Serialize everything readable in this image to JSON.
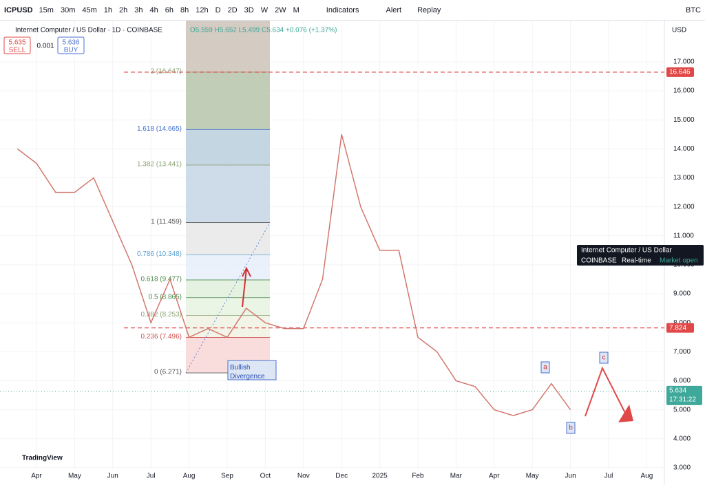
{
  "toolbar": {
    "symbol": "ICPUSD",
    "intervals": [
      "15m",
      "30m",
      "45m",
      "1h",
      "2h",
      "3h",
      "4h",
      "6h",
      "8h",
      "12h",
      "D",
      "2D",
      "3D",
      "W",
      "2W",
      "M"
    ],
    "indicators": "Indicators",
    "alert": "Alert",
    "replay": "Replay",
    "compare": "BTC"
  },
  "legend": {
    "title": "Internet Computer / US Dollar · 1D · COINBASE",
    "ohlc": "O5.559 H5.652 L5.499 C5.634 +0.076 (+1.37%)",
    "sell_price": "5.635",
    "sell": "SELL",
    "spread": "0.001",
    "buy_price": "5.636",
    "buy": "BUY"
  },
  "chart_data": {
    "type": "line",
    "currency": "USD",
    "color": "#d2776d",
    "categories": [
      null,
      "Apr",
      null,
      "May",
      null,
      "Jun",
      null,
      "Jul",
      null,
      "Aug",
      null,
      "Sep",
      null,
      "Oct",
      null,
      "Nov",
      null,
      "Dec",
      null,
      "2025",
      null,
      "Feb",
      null,
      "Mar",
      null,
      "Apr",
      null,
      "May",
      null,
      "Jun",
      null,
      "Jul",
      null,
      "Aug"
    ],
    "values": [
      14.0,
      13.5,
      12.5,
      12.5,
      13.0,
      11.5,
      10.0,
      8.0,
      9.5,
      7.5,
      7.8,
      7.5,
      8.5,
      8.0,
      7.8,
      7.8,
      9.5,
      14.5,
      12.0,
      10.5,
      10.5,
      7.5,
      7.0,
      6.0,
      5.8,
      5.0,
      4.8,
      5.0,
      5.9,
      5.0,
      null,
      null,
      null,
      null
    ],
    "ylim": [
      2.95,
      18.28
    ],
    "yticks": [
      {
        "value": 3,
        "label": "3.000"
      },
      {
        "value": 4,
        "label": "4.000"
      },
      {
        "value": 5,
        "label": "5.000"
      },
      {
        "value": 6,
        "label": "6.000"
      },
      {
        "value": 7,
        "label": "7.000"
      },
      {
        "value": 8,
        "label": "8.000"
      },
      {
        "value": 9,
        "label": "9.000"
      },
      {
        "value": 10,
        "label": "10.000"
      },
      {
        "value": 11,
        "label": "11.000"
      },
      {
        "value": 12,
        "label": "12.000"
      },
      {
        "value": 13,
        "label": "13.000"
      },
      {
        "value": 14,
        "label": "14.000"
      },
      {
        "value": 15,
        "label": "15.000"
      },
      {
        "value": 16,
        "label": "16.000"
      },
      {
        "value": 17,
        "label": "17.000"
      }
    ],
    "hlines": [
      {
        "price": 16.646,
        "color": "#e04848"
      },
      {
        "price": 7.824,
        "color": "#e04848"
      }
    ],
    "last_price": 5.634,
    "countdown": "17:31:22",
    "fib": [
      {
        "label": "2 (16.647)",
        "price": 16.647,
        "color": "#b6c4aa",
        "text": "#8aa070"
      },
      {
        "label": "1.618 (14.665)",
        "price": 14.665,
        "color": "#b8cfdc",
        "text": "#3f6fd0"
      },
      {
        "label": "1.382 (13.441)",
        "price": 13.441,
        "color": "#c6d6e6",
        "text": "#8aa070"
      },
      {
        "label": "1 (11.459)",
        "price": 11.459,
        "color": "#e8e8e8",
        "text": "#555555"
      },
      {
        "label": "0.786 (10.348)",
        "price": 10.348,
        "color": "#e6eff9",
        "text": "#5aa0d0"
      },
      {
        "label": "0.618 (9.477)",
        "price": 9.477,
        "color": "#e0efdc",
        "text": "#4a8a4a"
      },
      {
        "label": "0.5 (8.865)",
        "price": 8.865,
        "color": "#e8f3e2",
        "text": "#4a8a4a"
      },
      {
        "label": "0.382 (8.253)",
        "price": 8.253,
        "color": "#eef2e2",
        "text": "#8aa070"
      },
      {
        "label": "0.236 (7.496)",
        "price": 7.496,
        "color": "#f8d6d6",
        "text": "#d05050"
      },
      {
        "label": "0 (6.271)",
        "price": 6.271,
        "color": "#f8d6d6",
        "text": "#555555"
      }
    ],
    "annotations": {
      "divergence": "Bullish Divergence",
      "a": "a",
      "b": "b",
      "c": "c"
    },
    "tooltip": {
      "title": "Internet Computer / US Dollar",
      "exchange": "COINBASE",
      "realtime": "Real-time",
      "status": "Market open"
    },
    "brand": "TradingView"
  }
}
